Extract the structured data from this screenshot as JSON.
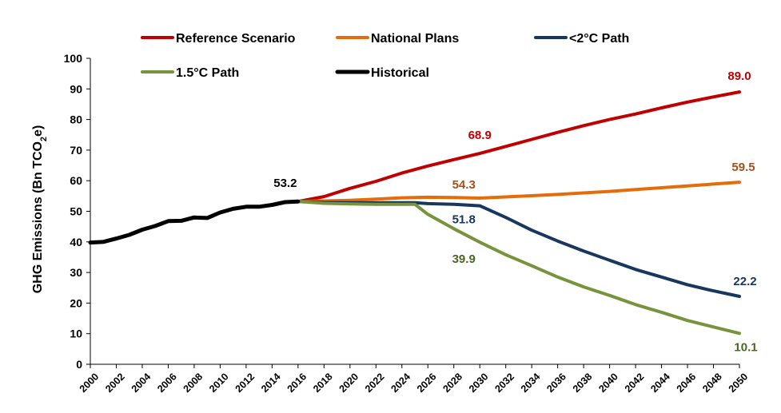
{
  "chart_data": {
    "type": "line",
    "title": "",
    "xlabel": "",
    "ylabel": "GHG Emissions (Bn TCO",
    "ylabel_sub": "2",
    "ylabel_tail": "e)",
    "ylim": [
      0,
      100
    ],
    "xlim": [
      2000,
      2050
    ],
    "yticks": [
      0,
      10,
      20,
      30,
      40,
      50,
      60,
      70,
      80,
      90,
      100
    ],
    "xticks": [
      2000,
      2002,
      2004,
      2006,
      2008,
      2010,
      2012,
      2014,
      2016,
      2018,
      2020,
      2022,
      2024,
      2026,
      2028,
      2030,
      2032,
      2034,
      2036,
      2038,
      2040,
      2042,
      2044,
      2046,
      2048,
      2050
    ],
    "grid": false,
    "legend_position": "top",
    "series": [
      {
        "name": "Reference Scenario",
        "color": "#C00000",
        "x": [
          2016,
          2018,
          2020,
          2022,
          2024,
          2026,
          2028,
          2030,
          2032,
          2034,
          2036,
          2038,
          2040,
          2042,
          2044,
          2046,
          2048,
          2050
        ],
        "values": [
          53.2,
          54.8,
          57.5,
          59.8,
          62.5,
          64.8,
          66.9,
          68.9,
          71.2,
          73.5,
          75.8,
          78.0,
          80.0,
          81.8,
          83.8,
          85.7,
          87.4,
          89.0
        ]
      },
      {
        "name": "National Plans",
        "color": "#E46C0A",
        "x": [
          2016,
          2018,
          2020,
          2022,
          2024,
          2026,
          2028,
          2030,
          2032,
          2034,
          2036,
          2038,
          2040,
          2042,
          2044,
          2046,
          2048,
          2050
        ],
        "values": [
          53.2,
          53.4,
          53.6,
          54.0,
          54.4,
          54.6,
          54.5,
          54.3,
          54.7,
          55.1,
          55.5,
          56.0,
          56.5,
          57.1,
          57.7,
          58.3,
          58.9,
          59.5
        ]
      },
      {
        "name": "<2°C Path",
        "color": "#17375E",
        "x": [
          2016,
          2018,
          2020,
          2022,
          2024,
          2025,
          2026,
          2028,
          2030,
          2032,
          2034,
          2036,
          2038,
          2040,
          2042,
          2044,
          2046,
          2048,
          2050
        ],
        "values": [
          53.2,
          52.9,
          52.8,
          52.8,
          52.8,
          52.8,
          52.5,
          52.3,
          51.8,
          48.0,
          43.8,
          40.3,
          37.0,
          34.0,
          31.0,
          28.5,
          26.0,
          24.0,
          22.2
        ]
      },
      {
        "name": "1.5°C Path",
        "color": "#77933C",
        "x": [
          2016,
          2018,
          2020,
          2022,
          2024,
          2025,
          2026,
          2028,
          2030,
          2032,
          2034,
          2036,
          2038,
          2040,
          2042,
          2044,
          2046,
          2048,
          2050
        ],
        "values": [
          53.2,
          52.6,
          52.4,
          52.3,
          52.3,
          52.3,
          49.0,
          44.3,
          39.9,
          35.8,
          32.2,
          28.5,
          25.3,
          22.5,
          19.5,
          17.0,
          14.3,
          12.2,
          10.1
        ]
      },
      {
        "name": "Historical",
        "color": "#000000",
        "x": [
          2000,
          2001,
          2002,
          2003,
          2004,
          2005,
          2006,
          2007,
          2008,
          2009,
          2010,
          2011,
          2012,
          2013,
          2014,
          2015,
          2016
        ],
        "values": [
          39.8,
          40.0,
          41.1,
          42.3,
          44.0,
          45.2,
          46.8,
          46.9,
          48.0,
          47.8,
          49.6,
          50.8,
          51.5,
          51.5,
          52.1,
          53.0,
          53.2
        ]
      }
    ],
    "data_labels": [
      {
        "series": "Historical",
        "text": "53.2",
        "x": 2016,
        "y": 53.2,
        "color": "#000000"
      },
      {
        "series": "Reference Scenario",
        "text": "68.9",
        "x": 2030,
        "y": 68.9,
        "color": "#C00000"
      },
      {
        "series": "Reference Scenario",
        "text": "89.0",
        "x": 2050,
        "y": 89.0,
        "color": "#C00000"
      },
      {
        "series": "National Plans",
        "text": "54.3",
        "x": 2030,
        "y": 54.3,
        "color": "#A0521A"
      },
      {
        "series": "National Plans",
        "text": "59.5",
        "x": 2050,
        "y": 59.5,
        "color": "#A0521A"
      },
      {
        "series": "<2°C Path",
        "text": "51.8",
        "x": 2030,
        "y": 51.8,
        "color": "#17375E"
      },
      {
        "series": "<2°C Path",
        "text": "22.2",
        "x": 2050,
        "y": 22.2,
        "color": "#17375E"
      },
      {
        "series": "1.5°C Path",
        "text": "39.9",
        "x": 2030,
        "y": 39.9,
        "color": "#4F6228"
      },
      {
        "series": "1.5°C Path",
        "text": "10.1",
        "x": 2050,
        "y": 10.1,
        "color": "#4F6228"
      }
    ]
  }
}
